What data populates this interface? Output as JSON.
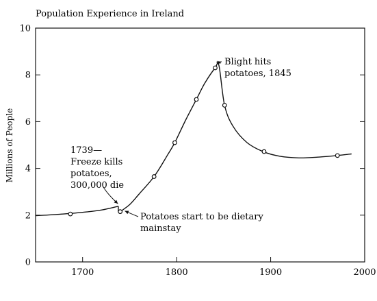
{
  "chart_data": {
    "type": "line",
    "title": "Population Experience in Ireland",
    "xlabel": "",
    "ylabel": "Millions of People",
    "xlim": [
      1650,
      2000
    ],
    "ylim": [
      0,
      10
    ],
    "xticks": [
      1700,
      1800,
      1900,
      2000
    ],
    "yticks": [
      0,
      2,
      4,
      6,
      8,
      10
    ],
    "grid": false,
    "series": [
      {
        "name": "",
        "segments": [
          {
            "x": [
              1650,
              1660,
              1680,
              1700,
              1720,
              1738
            ],
            "y": [
              1.98,
              2.0,
              2.05,
              2.12,
              2.22,
              2.38
            ]
          },
          {
            "x": [
              1740,
              1750,
              1760,
              1776,
              1790,
              1798,
              1810,
              1821,
              1830,
              1841,
              1845,
              1851,
              1860,
              1875,
              1893,
              1910,
              1930,
              1950,
              1971,
              1986
            ],
            "y": [
              2.15,
              2.45,
              2.9,
              3.65,
              4.55,
              5.1,
              6.1,
              6.95,
              7.65,
              8.3,
              8.4,
              6.7,
              5.8,
              5.1,
              4.7,
              4.52,
              4.45,
              4.48,
              4.55,
              4.62
            ]
          }
        ],
        "points": [
          {
            "x": 1687,
            "y": 2.05
          },
          {
            "x": 1740,
            "y": 2.15
          },
          {
            "x": 1776,
            "y": 3.65
          },
          {
            "x": 1798,
            "y": 5.1
          },
          {
            "x": 1821,
            "y": 6.95
          },
          {
            "x": 1841,
            "y": 8.3
          },
          {
            "x": 1851,
            "y": 6.7
          },
          {
            "x": 1893,
            "y": 4.72
          },
          {
            "x": 1971,
            "y": 4.55
          }
        ]
      }
    ],
    "annotations": [
      {
        "id": "freeze",
        "lines": [
          "1739—",
          "Freeze kills",
          "potatoes,",
          "300,000 die"
        ],
        "target": {
          "x": 1739,
          "y": 2.4
        }
      },
      {
        "id": "mainstay",
        "lines": [
          "Potatoes start to be dietary",
          "mainstay"
        ],
        "target": {
          "x": 1742,
          "y": 2.15
        }
      },
      {
        "id": "blight",
        "lines": [
          "Blight hits",
          "potatoes, 1845"
        ],
        "target": {
          "x": 1845,
          "y": 8.45
        }
      }
    ]
  }
}
